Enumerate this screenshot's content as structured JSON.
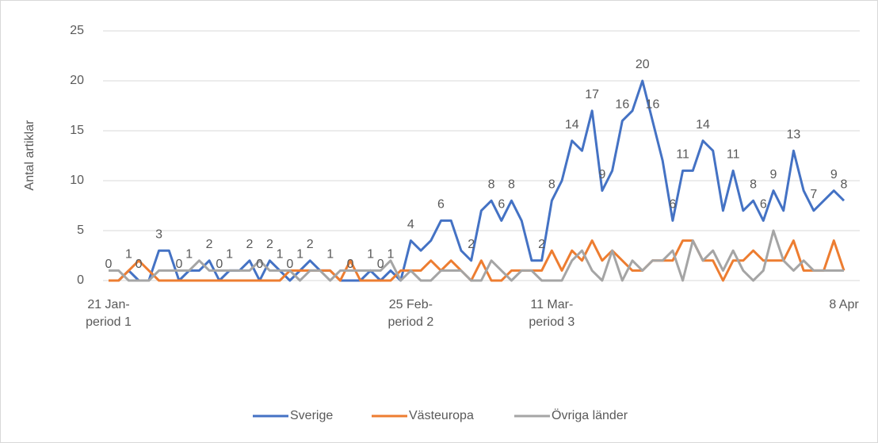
{
  "chart_data": {
    "type": "line",
    "y_label": "Antal artiklar",
    "categories": [
      "21 Jan-period 1",
      null,
      null,
      null,
      null,
      null,
      null,
      null,
      null,
      null,
      null,
      null,
      null,
      null,
      null,
      null,
      null,
      null,
      null,
      null,
      null,
      null,
      null,
      null,
      null,
      null,
      null,
      null,
      null,
      null,
      "25 Feb-period 2",
      null,
      null,
      null,
      null,
      null,
      null,
      null,
      null,
      null,
      null,
      null,
      null,
      null,
      "11 Mar-period 3",
      null,
      null,
      null,
      null,
      null,
      null,
      null,
      null,
      null,
      null,
      null,
      null,
      null,
      null,
      null,
      null,
      null,
      null,
      null,
      null,
      null,
      null,
      null,
      null,
      null,
      null,
      null,
      null,
      "8 Apr"
    ],
    "series": [
      {
        "name": "Sverige",
        "color": "#4472c4",
        "values": [
          0,
          0,
          1,
          0,
          0,
          3,
          3,
          0,
          1,
          1,
          2,
          0,
          1,
          1,
          2,
          0,
          2,
          1,
          0,
          1,
          2,
          1,
          1,
          0,
          0,
          0,
          1,
          0,
          1,
          0,
          4,
          3,
          4,
          6,
          6,
          3,
          2,
          7,
          8,
          6,
          8,
          6,
          2,
          2,
          8,
          10,
          14,
          13,
          17,
          9,
          11,
          16,
          17,
          20,
          16,
          12,
          6,
          11,
          11,
          14,
          13,
          7,
          11,
          7,
          8,
          6,
          9,
          7,
          13,
          9,
          7,
          8,
          9,
          8
        ],
        "value_labels": [
          "0",
          null,
          "1",
          "0",
          null,
          "3",
          null,
          "0",
          "1",
          null,
          "2",
          "0",
          "1",
          null,
          "2",
          "0",
          "2",
          "1",
          "0",
          "1",
          "2",
          null,
          "1",
          null,
          "0",
          null,
          "1",
          "0",
          "1",
          null,
          "4",
          null,
          null,
          "6",
          null,
          null,
          "2",
          null,
          "8",
          "6",
          "8",
          null,
          null,
          "2",
          "8",
          null,
          "14",
          null,
          "17",
          "9",
          null,
          "16",
          null,
          "20",
          "16",
          null,
          "6",
          "11",
          null,
          "14",
          null,
          null,
          "11",
          null,
          "8",
          "6",
          "9",
          null,
          "13",
          null,
          "7",
          null,
          "9",
          "8"
        ]
      },
      {
        "name": "Västeuropa",
        "color": "#ed7d31",
        "values": [
          0,
          0,
          1,
          2,
          1,
          0,
          0,
          0,
          0,
          0,
          0,
          0,
          0,
          0,
          0,
          0,
          0,
          0,
          1,
          1,
          1,
          1,
          1,
          0,
          2,
          0,
          0,
          0,
          0,
          1,
          1,
          1,
          2,
          1,
          2,
          1,
          0,
          2,
          0,
          0,
          1,
          1,
          1,
          1,
          3,
          1,
          3,
          2,
          4,
          2,
          3,
          2,
          1,
          1,
          2,
          2,
          2,
          4,
          4,
          2,
          2,
          0,
          2,
          2,
          3,
          2,
          2,
          2,
          4,
          1,
          1,
          1,
          4,
          1
        ]
      },
      {
        "name": "Övriga länder",
        "color": "#a5a5a5",
        "values": [
          1,
          1,
          0,
          0,
          0,
          1,
          1,
          1,
          1,
          2,
          1,
          1,
          1,
          1,
          1,
          2,
          1,
          1,
          1,
          0,
          1,
          1,
          0,
          1,
          1,
          1,
          1,
          1,
          2,
          0,
          1,
          0,
          0,
          1,
          1,
          1,
          0,
          0,
          2,
          1,
          0,
          1,
          1,
          0,
          0,
          0,
          2,
          3,
          1,
          0,
          3,
          0,
          2,
          1,
          2,
          2,
          3,
          0,
          4,
          2,
          3,
          1,
          3,
          1,
          0,
          1,
          5,
          2,
          1,
          2,
          1,
          1,
          1,
          1
        ]
      }
    ],
    "ylim": [
      0,
      25
    ],
    "yticks": [
      0,
      5,
      10,
      15,
      20,
      25
    ],
    "grid": true,
    "legend": "bottom"
  }
}
